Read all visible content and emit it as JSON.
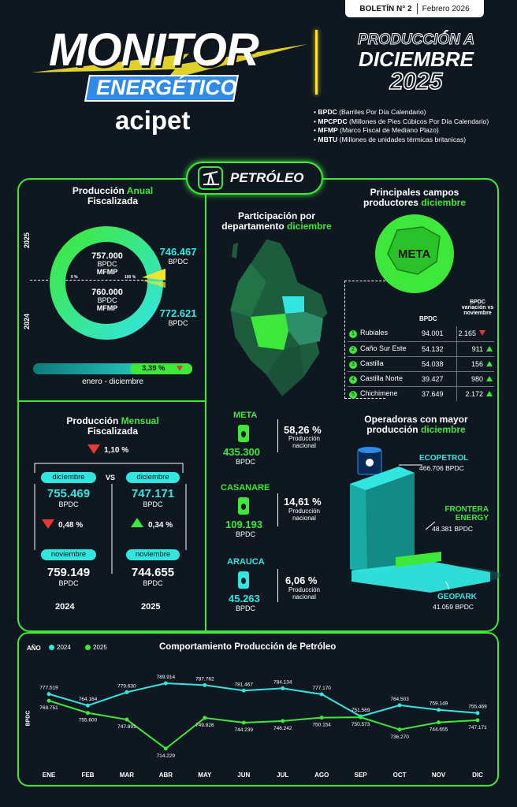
{
  "header": {
    "bulletin": "BOLETÍN N° 2",
    "date": "Febrero 2026",
    "monitor": "MONITOR",
    "energetico": "ENERGÉTICO",
    "brand": "acipet",
    "prod_line1": "PRODUCCIÓN A",
    "prod_line2": "DICIEMBRE",
    "prod_line3": "2025"
  },
  "glossary": [
    {
      "abbr": "BPDC",
      "desc": "(Barriles Por Día Calendario)"
    },
    {
      "abbr": "MPCPDC",
      "desc": "(Millones de Pies Cúbicos Por Día Calendario)"
    },
    {
      "abbr": "MFMP",
      "desc": "(Marco Fiscal de Mediano Plazo)"
    },
    {
      "abbr": "MBTU",
      "desc": "(Millones de unidades térmicas britanicas)"
    }
  ],
  "section_title": "PETRÓLEO",
  "annual": {
    "title_a": "Producción",
    "title_b": "Anual",
    "title_c": "Fiscalizada",
    "year_top": "2025",
    "year_bottom": "2024",
    "mfmp_2025": "757.000",
    "mfmp_2024": "760.000",
    "unit": "BPDC",
    "mfmp_label": "MFMP",
    "value_2025": "746.467",
    "value_2024": "772.621",
    "pct0": "0 %",
    "pct100": "100 %",
    "variation": "3,39 %",
    "variation_fill": 0.39,
    "period": "enero - diciembre"
  },
  "monthly": {
    "title_a": "Producción",
    "title_b": "Mensual",
    "title_c": "Fiscalizada",
    "top_change": "1,10 %",
    "dec_label": "diciembre",
    "vs": "VS",
    "nov_label": "noviembre",
    "dec_2024": "755.469",
    "dec_2025": "747.171",
    "nov_2024": "759.149",
    "nov_2025": "744.655",
    "chg_2024": "0,48 %",
    "chg_2025": "0,34 %",
    "unit": "BPDC",
    "year_2024": "2024",
    "year_2025": "2025"
  },
  "departments": {
    "title_a": "Participación por",
    "title_b": "departamento",
    "title_c": "diciembre",
    "items": [
      {
        "name": "META",
        "value": "435.300",
        "unit": "BPDC",
        "pct": "58,26 %",
        "label": "Producción nacional"
      },
      {
        "name": "CASANARE",
        "value": "109.193",
        "unit": "BPDC",
        "pct": "14,61 %",
        "label": "Producción nacional"
      },
      {
        "name": "ARAUCA",
        "value": "45.263",
        "unit": "BPDC",
        "pct": "6,06 %",
        "label": "Producción nacional"
      }
    ]
  },
  "fields": {
    "title_a": "Principales campos",
    "title_b": "productores",
    "title_c": "diciembre",
    "region": "META",
    "col_bpdc": "BPDC",
    "col_var": "BPDC variación vs noviembre",
    "rows": [
      {
        "n": "1",
        "name": "Rubiales",
        "bpdc": "94.001",
        "var": "2.165",
        "dir": "down"
      },
      {
        "n": "2",
        "name": "Caño Sur Este",
        "bpdc": "54.132",
        "var": "911",
        "dir": "up"
      },
      {
        "n": "3",
        "name": "Castilla",
        "bpdc": "54.038",
        "var": "156",
        "dir": "up"
      },
      {
        "n": "4",
        "name": "Castilla Norte",
        "bpdc": "39.427",
        "var": "980",
        "dir": "up"
      },
      {
        "n": "5",
        "name": "Chichimene",
        "bpdc": "37.649",
        "var": "2.172",
        "dir": "up"
      }
    ]
  },
  "operators": {
    "title_a": "Operadoras con mayor",
    "title_b": "producción",
    "title_c": "diciembre",
    "items": [
      {
        "name": "ECOPETROL",
        "value": "466.706 BPDC"
      },
      {
        "name": "FRONTERA ENERGY",
        "value": "48.381 BPDC"
      },
      {
        "name": "GEOPARK",
        "value": "41.059 BPDC"
      }
    ]
  },
  "chart_data": {
    "type": "line",
    "title": "Comportamiento Producción de Petróleo",
    "legend_title": "AÑO",
    "ylabel": "BPDC",
    "categories": [
      "ENE",
      "FEB",
      "MAR",
      "ABR",
      "MAY",
      "JUN",
      "JUL",
      "AGO",
      "SEP",
      "OCT",
      "NOV",
      "DIC"
    ],
    "ylim": [
      705000,
      800000
    ],
    "series": [
      {
        "name": "2024",
        "color": "#32e6e0",
        "values": [
          777519,
          764164,
          779630,
          789914,
          787762,
          781467,
          784134,
          777170,
          751569,
          764503,
          759149,
          755469
        ],
        "labels": [
          "777.519",
          "764.164",
          "779.630",
          "789.914",
          "787.762",
          "781.467",
          "784.134",
          "777.170",
          "751.569",
          "764.503",
          "759.149",
          "755.469"
        ]
      },
      {
        "name": "2025",
        "color": "#3ee83a",
        "values": [
          769751,
          755600,
          747891,
          714229,
          749826,
          744239,
          746242,
          750154,
          750573,
          736270,
          744655,
          747171
        ],
        "labels": [
          "769.751",
          "755.600",
          "747.891",
          "714.229",
          "749.826",
          "744.239",
          "746.242",
          "750.154",
          "750.573",
          "736.270",
          "744.655",
          "747.171"
        ]
      }
    ]
  }
}
